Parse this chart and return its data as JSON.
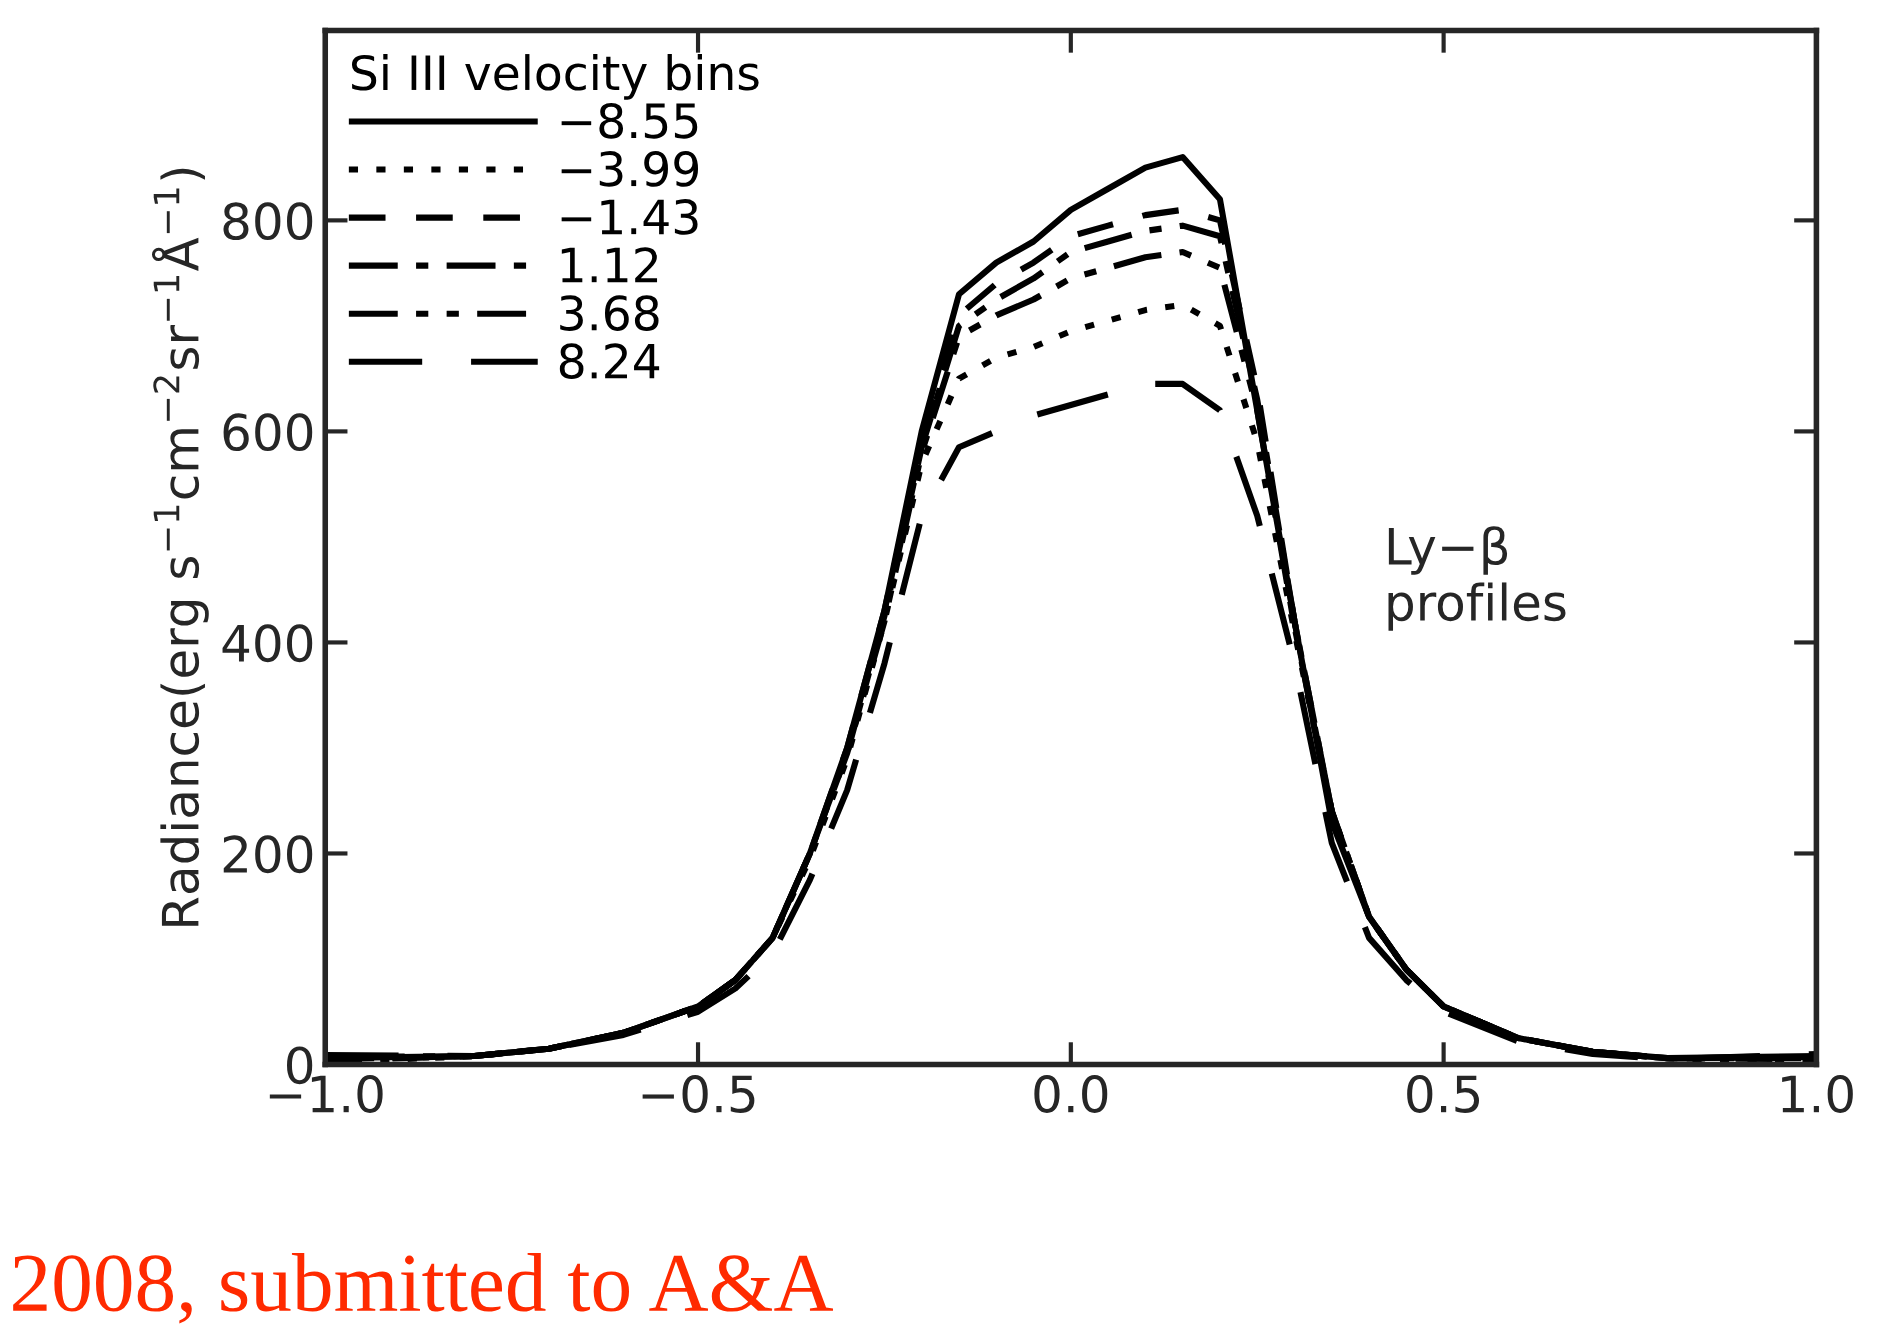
{
  "chart_data": {
    "type": "line",
    "ylabel": "Radiance(erg s$^{−1}$cm$^{−2}$sr$^{−1}$Å$^{−1}$)",
    "legend_title": "Si III velocity bins",
    "legend": "top left",
    "annotations": [
      "Ly−β\nprofiles",
      "2008, submitted to A&A"
    ],
    "x": [
      -1,
      -0.8,
      -0.7,
      -0.6,
      -0.5,
      -0.45,
      -0.4,
      -0.35,
      -0.3,
      -0.25,
      -0.2,
      -0.15,
      -0.1,
      -0.05,
      0,
      0.05,
      0.1,
      0.15,
      0.2,
      0.25,
      0.3,
      0.35,
      0.4,
      0.45,
      0.5,
      0.6,
      0.7,
      0.8,
      1.0
    ],
    "xlim": [
      -1,
      1
    ],
    "xticks": [
      {
        "value": -1,
        "label": "−1.0"
      },
      {
        "value": -0.5,
        "label": "−0.5"
      },
      {
        "value": 0,
        "label": "0.0"
      },
      {
        "value": 0.5,
        "label": "0.5"
      },
      {
        "value": 1,
        "label": "1.0"
      }
    ],
    "ylim": [
      0,
      980
    ],
    "yticks": [
      0,
      200,
      400,
      600,
      800
    ],
    "grid": false,
    "series": [
      {
        "name": "−8.55",
        "color": "#000000",
        "line_style": "solid",
        "values": [
          6,
          8,
          15,
          30,
          55,
          80,
          120,
          200,
          300,
          430,
          600,
          730,
          760,
          780,
          810,
          830,
          850,
          860,
          820,
          620,
          420,
          230,
          140,
          90,
          55,
          25,
          12,
          6,
          8
        ]
      },
      {
        "name": "−3.99",
        "color": "#000000",
        "line_style": "dotted",
        "values": [
          2,
          8,
          15,
          30,
          55,
          80,
          120,
          195,
          290,
          420,
          570,
          650,
          670,
          680,
          695,
          705,
          715,
          720,
          700,
          590,
          410,
          240,
          140,
          90,
          55,
          25,
          12,
          6,
          1
        ]
      },
      {
        "name": "−1.43",
        "color": "#000000",
        "line_style": "dashed",
        "values": [
          4,
          8,
          15,
          30,
          55,
          80,
          120,
          200,
          300,
          430,
          590,
          710,
          740,
          760,
          785,
          795,
          805,
          810,
          800,
          640,
          420,
          240,
          140,
          90,
          55,
          25,
          12,
          6,
          5
        ]
      },
      {
        "name": "1.12",
        "color": "#000000",
        "line_style": "dashdot",
        "values": [
          5,
          8,
          15,
          30,
          55,
          80,
          120,
          200,
          295,
          425,
          585,
          700,
          725,
          745,
          770,
          780,
          790,
          795,
          785,
          630,
          420,
          240,
          140,
          90,
          55,
          25,
          12,
          6,
          6
        ]
      },
      {
        "name": "3.68",
        "color": "#000000",
        "line_style": "dashdotdot",
        "values": [
          7,
          8,
          15,
          30,
          55,
          80,
          120,
          200,
          295,
          420,
          580,
          690,
          710,
          725,
          745,
          755,
          765,
          770,
          755,
          620,
          415,
          240,
          140,
          90,
          55,
          25,
          12,
          6,
          7
        ]
      },
      {
        "name": "8.24",
        "color": "#000000",
        "line_style": "longdash",
        "values": [
          9,
          8,
          15,
          28,
          50,
          72,
          105,
          175,
          260,
          380,
          520,
          585,
          600,
          615,
          625,
          635,
          645,
          645,
          620,
          520,
          380,
          210,
          120,
          80,
          50,
          22,
          10,
          5,
          10
        ]
      }
    ]
  }
}
